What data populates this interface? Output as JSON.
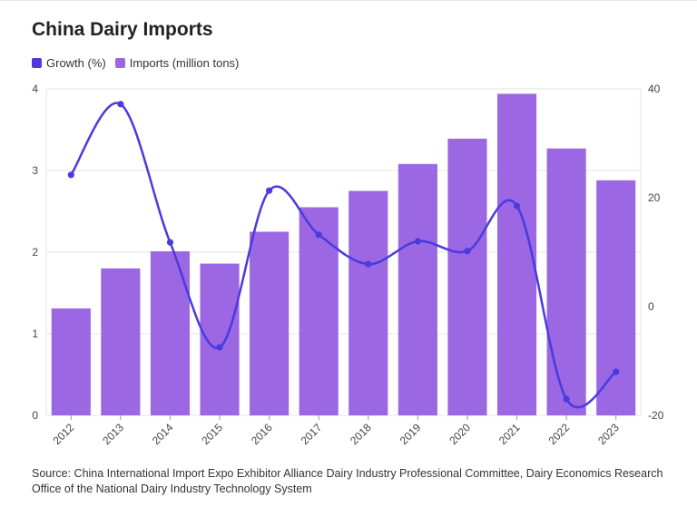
{
  "title": "China Dairy Imports",
  "legend": {
    "growth_label": "Growth (%)",
    "imports_label": "Imports (million tons)"
  },
  "colors": {
    "bar": "#9b67e3",
    "line": "#4a3adf",
    "grid": "#e6e6e6",
    "axis_text": "#444444"
  },
  "source": "Source: China International Import Expo Exhibitor Alliance Dairy Industry Professional Committee, Dairy Economics Research Office of the National Dairy Industry Technology System",
  "chart_data": {
    "type": "bar",
    "categories": [
      "2012",
      "2013",
      "2014",
      "2015",
      "2016",
      "2017",
      "2018",
      "2019",
      "2020",
      "2021",
      "2022",
      "2023"
    ],
    "series": [
      {
        "name": "Imports (million tons)",
        "type": "bar",
        "axis": "left",
        "values": [
          1.31,
          1.8,
          2.01,
          1.86,
          2.25,
          2.55,
          2.75,
          3.08,
          3.39,
          3.94,
          3.27,
          2.88
        ]
      },
      {
        "name": "Growth (%)",
        "type": "line",
        "axis": "right",
        "values": [
          24.2,
          37.2,
          11.8,
          -7.5,
          21.3,
          13.2,
          7.8,
          12.0,
          10.2,
          18.5,
          -17.0,
          -12.0
        ]
      }
    ],
    "y_left": {
      "ticks": [
        "0",
        "1",
        "2",
        "3",
        "4"
      ],
      "ylim": [
        0,
        4
      ]
    },
    "y_right": {
      "ticks": [
        "-20",
        "0",
        "20",
        "40"
      ],
      "ylim": [
        -20,
        40
      ]
    },
    "grid": true,
    "legend_position": "top-left"
  }
}
